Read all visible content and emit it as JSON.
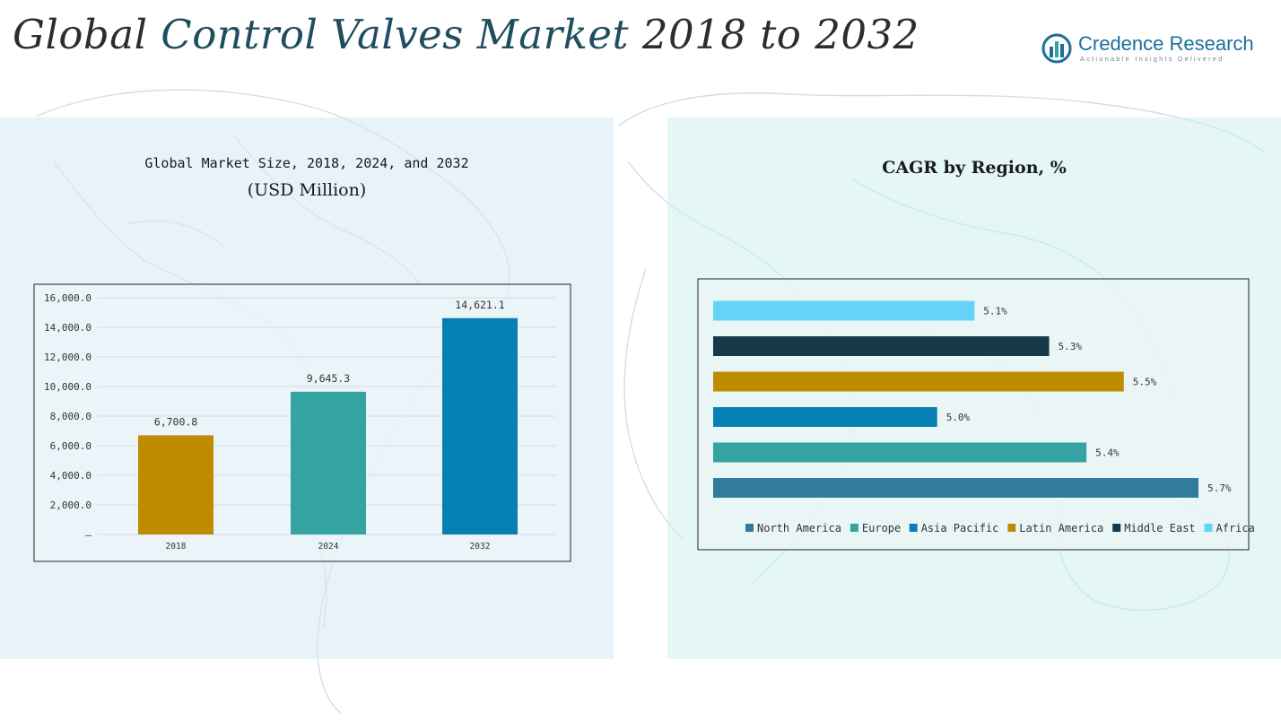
{
  "header": {
    "title_part1": "Global ",
    "title_part2": "Control Valves Market",
    "title_part3": " 2018 to 2032"
  },
  "logo": {
    "name": "Credence Research",
    "tagline": "Actionable Insights Delivered",
    "icon": "credence-logo-icon"
  },
  "colors": {
    "gold": "#BF8C00",
    "teal": "#36A3A3",
    "blue": "#0680B3",
    "dark": "#173A4B",
    "light_blue": "#66D2F8",
    "steel_blue": "#327A9E"
  },
  "chart_data": [
    {
      "type": "bar",
      "title": "Global Market Size, 2018, 2024, and 2032",
      "subtitle": "(USD Million)",
      "categories": [
        "2018",
        "2024",
        "2032"
      ],
      "values": [
        6700.8,
        9645.3,
        14621.1
      ],
      "value_labels": [
        "6,700.8",
        "9,645.3",
        "14,621.1"
      ],
      "bar_colors": [
        "#BF8C00",
        "#36A3A3",
        "#0680B3"
      ],
      "ylim": [
        0,
        16000
      ],
      "yticks": [
        0,
        2000,
        4000,
        6000,
        8000,
        10000,
        12000,
        14000,
        16000
      ],
      "ytick_labels": [
        "–",
        "2,000.0",
        "4,000.0",
        "6,000.0",
        "8,000.0",
        "10,000.0",
        "12,000.0",
        "14,000.0",
        "16,000.0"
      ],
      "grid": true,
      "xlabel": "",
      "ylabel": ""
    },
    {
      "type": "bar",
      "orientation": "horizontal",
      "title": "CAGR by Region, %",
      "categories": [
        "North America",
        "Europe",
        "Asia Pacific",
        "Latin America",
        "Middle East",
        "Africa"
      ],
      "values": [
        5.7,
        5.4,
        5.0,
        5.5,
        5.3,
        5.1
      ],
      "value_labels": [
        "5.7%",
        "5.4%",
        "5.0%",
        "5.5%",
        "5.3%",
        "5.1%"
      ],
      "bar_colors": [
        "#327A9E",
        "#36A3A3",
        "#0680B3",
        "#BF8C00",
        "#173A4B",
        "#66D2F8"
      ],
      "xlim": [
        4.4,
        5.7
      ],
      "legend_position": "bottom",
      "grid": false
    }
  ]
}
